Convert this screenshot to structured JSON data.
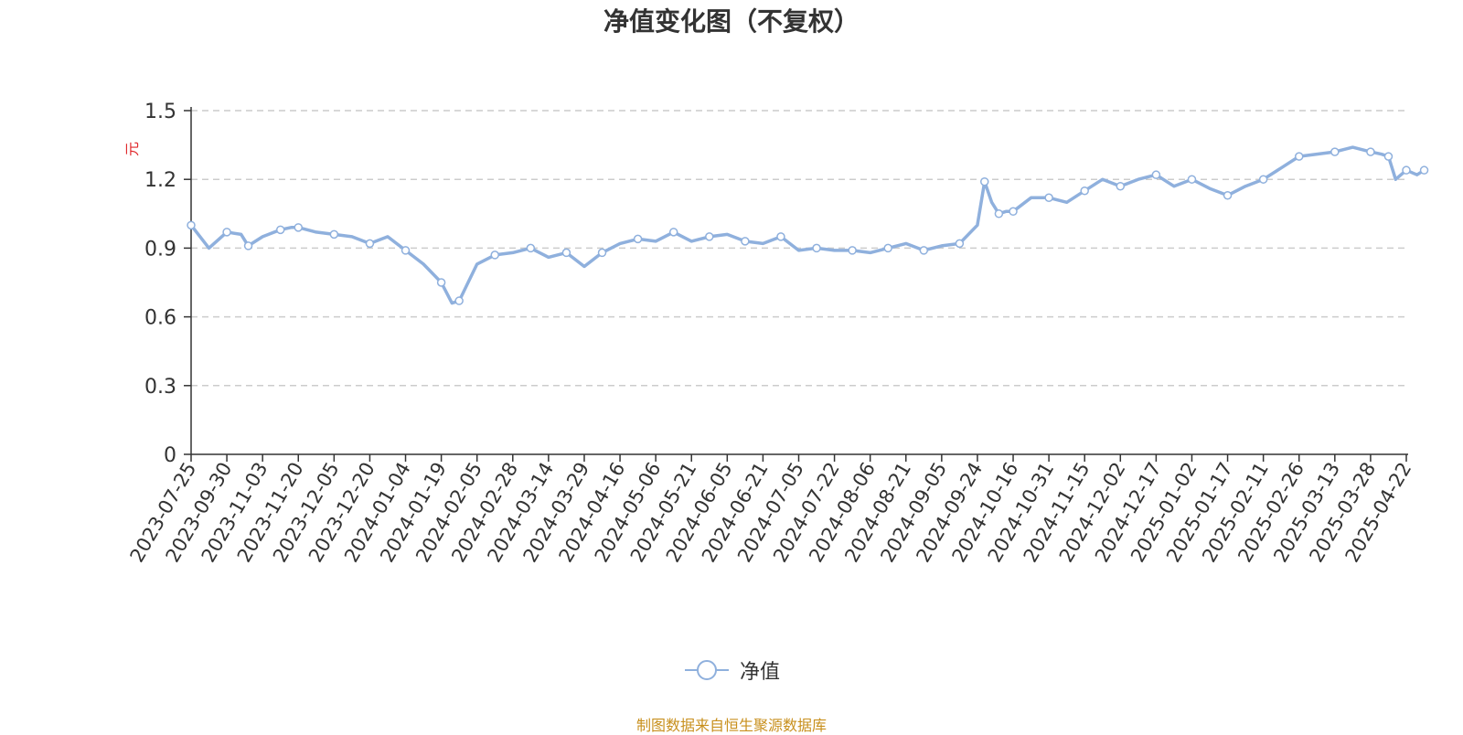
{
  "title": "净值变化图（不复权）",
  "source_note": "制图数据来自恒生聚源数据库",
  "colors": {
    "line": "#8fb0dd",
    "axis": "#333333",
    "grid": "#cccccc",
    "unit": "#e0292c",
    "title": "#333333",
    "source": "#c8901e"
  },
  "chart_data": {
    "type": "line",
    "ylabel": "元",
    "ylim": [
      0,
      1.5
    ],
    "yticks": [
      "0",
      "0.3",
      "0.6",
      "0.9",
      "1.2",
      "1.5"
    ],
    "grid": true,
    "legend_position": "bottom-center",
    "x_ticks": [
      "2023-07-25",
      "2023-09-30",
      "2023-11-03",
      "2023-11-20",
      "2023-12-05",
      "2023-12-20",
      "2024-01-04",
      "2024-01-19",
      "2024-02-05",
      "2024-02-28",
      "2024-03-14",
      "2024-03-29",
      "2024-04-16",
      "2024-05-06",
      "2024-05-21",
      "2024-06-05",
      "2024-06-21",
      "2024-07-05",
      "2024-07-22",
      "2024-08-06",
      "2024-08-21",
      "2024-09-05",
      "2024-09-24",
      "2024-10-16",
      "2024-10-31",
      "2024-11-15",
      "2024-12-02",
      "2024-12-17",
      "2025-01-02",
      "2025-01-17",
      "2025-02-11",
      "2025-02-26",
      "2025-03-13",
      "2025-03-28",
      "2025-04-22"
    ],
    "series": [
      {
        "name": "净值",
        "x": [
          0,
          0.5,
          1,
          1.4,
          1.6,
          2,
          2.5,
          2.8,
          3,
          3.5,
          4,
          4.5,
          5,
          5.5,
          6,
          6.5,
          7,
          7.3,
          7.5,
          8,
          8.5,
          9,
          9.5,
          10,
          10.5,
          11,
          11.5,
          12,
          12.5,
          13,
          13.5,
          14,
          14.5,
          15,
          15.5,
          16,
          16.5,
          17,
          17.5,
          18,
          18.5,
          19,
          19.5,
          20,
          20.5,
          21,
          21.5,
          22,
          22.2,
          22.4,
          22.6,
          22.8,
          23,
          23.5,
          24,
          24.5,
          25,
          25.5,
          26,
          26.5,
          27,
          27.5,
          28,
          28.5,
          29,
          29.5,
          30,
          30.5,
          31,
          31.5,
          32,
          32.5,
          33,
          33.3,
          33.5,
          33.7,
          34,
          34.3,
          34.5
        ],
        "values": [
          1.0,
          0.9,
          0.97,
          0.96,
          0.91,
          0.95,
          0.98,
          0.99,
          0.99,
          0.97,
          0.96,
          0.95,
          0.92,
          0.95,
          0.89,
          0.83,
          0.75,
          0.66,
          0.67,
          0.83,
          0.87,
          0.88,
          0.9,
          0.86,
          0.88,
          0.82,
          0.88,
          0.92,
          0.94,
          0.93,
          0.97,
          0.93,
          0.95,
          0.96,
          0.93,
          0.92,
          0.95,
          0.89,
          0.9,
          0.89,
          0.89,
          0.88,
          0.9,
          0.92,
          0.89,
          0.91,
          0.92,
          1.0,
          1.19,
          1.1,
          1.05,
          1.06,
          1.06,
          1.12,
          1.12,
          1.1,
          1.15,
          1.2,
          1.17,
          1.2,
          1.22,
          1.17,
          1.2,
          1.16,
          1.13,
          1.17,
          1.2,
          1.25,
          1.3,
          1.31,
          1.32,
          1.34,
          1.32,
          1.31,
          1.3,
          1.2,
          1.24,
          1.22,
          1.24
        ]
      }
    ]
  }
}
